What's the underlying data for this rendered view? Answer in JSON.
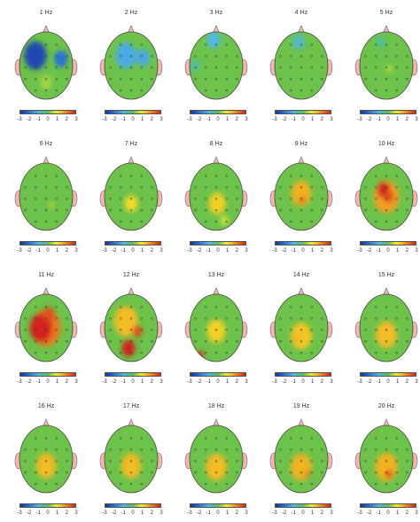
{
  "chart_data": {
    "type": "heatmap",
    "subtype": "eeg-topographic-map",
    "colorbar_ticks": [
      "-3",
      "-2",
      "-1",
      "0",
      "1",
      "2",
      "3"
    ],
    "color_range": [
      -3,
      3
    ],
    "colorscale": [
      "#1a2f9c",
      "#2a6fd6",
      "#4fb7e8",
      "#56c05c",
      "#f2ee2c",
      "#f28a1e",
      "#d2241c"
    ],
    "baseline_color": "#6cc24a",
    "electrode_grid": "5x5",
    "panels": [
      {
        "title": "1 Hz",
        "spots": [
          {
            "x": 0.3,
            "y": 0.35,
            "r": 0.42,
            "v": -2.6
          },
          {
            "x": 0.78,
            "y": 0.4,
            "r": 0.25,
            "v": -2.0
          },
          {
            "x": 0.5,
            "y": 0.75,
            "r": 0.22,
            "v": 0.5
          }
        ]
      },
      {
        "title": "2 Hz",
        "spots": [
          {
            "x": 0.4,
            "y": 0.35,
            "r": 0.38,
            "v": -1.2
          },
          {
            "x": 0.72,
            "y": 0.38,
            "r": 0.26,
            "v": -1.2
          }
        ]
      },
      {
        "title": "3 Hz",
        "spots": [
          {
            "x": 0.45,
            "y": 0.12,
            "r": 0.25,
            "v": -1.0
          },
          {
            "x": 0.1,
            "y": 0.5,
            "r": 0.18,
            "v": -0.5
          }
        ]
      },
      {
        "title": "4 Hz",
        "spots": [
          {
            "x": 0.45,
            "y": 0.15,
            "r": 0.22,
            "v": -0.8
          }
        ]
      },
      {
        "title": "5 Hz",
        "spots": [
          {
            "x": 0.4,
            "y": 0.15,
            "r": 0.18,
            "v": -0.4
          },
          {
            "x": 0.55,
            "y": 0.55,
            "r": 0.1,
            "v": 0.8
          }
        ]
      },
      {
        "title": "6 Hz",
        "spots": [
          {
            "x": 0.6,
            "y": 0.62,
            "r": 0.08,
            "v": 1.2
          }
        ]
      },
      {
        "title": "7 Hz",
        "spots": [
          {
            "x": 0.5,
            "y": 0.6,
            "r": 0.25,
            "v": 1.2
          }
        ]
      },
      {
        "title": "8 Hz",
        "spots": [
          {
            "x": 0.52,
            "y": 0.6,
            "r": 0.32,
            "v": 1.3
          },
          {
            "x": 0.65,
            "y": 0.85,
            "r": 0.15,
            "v": 0.8
          }
        ]
      },
      {
        "title": "9 Hz",
        "spots": [
          {
            "x": 0.5,
            "y": 0.45,
            "r": 0.38,
            "v": 1.6
          },
          {
            "x": 0.52,
            "y": 0.55,
            "r": 0.1,
            "v": 2.8
          }
        ]
      },
      {
        "title": "10 Hz",
        "spots": [
          {
            "x": 0.5,
            "y": 0.5,
            "r": 0.48,
            "v": 1.8
          },
          {
            "x": 0.45,
            "y": 0.4,
            "r": 0.24,
            "v": 3.0
          },
          {
            "x": 0.55,
            "y": 0.5,
            "r": 0.18,
            "v": 2.6
          }
        ]
      },
      {
        "title": "11 Hz",
        "spots": [
          {
            "x": 0.5,
            "y": 0.5,
            "r": 0.55,
            "v": 2.2
          },
          {
            "x": 0.4,
            "y": 0.5,
            "r": 0.42,
            "v": 3.0
          },
          {
            "x": 0.55,
            "y": 0.3,
            "r": 0.22,
            "v": 2.6
          }
        ]
      },
      {
        "title": "12 Hz",
        "spots": [
          {
            "x": 0.4,
            "y": 0.4,
            "r": 0.45,
            "v": 1.5
          },
          {
            "x": 0.45,
            "y": 0.8,
            "r": 0.25,
            "v": 3.0
          },
          {
            "x": 0.62,
            "y": 0.55,
            "r": 0.18,
            "v": 2.6
          }
        ]
      },
      {
        "title": "13 Hz",
        "spots": [
          {
            "x": 0.5,
            "y": 0.55,
            "r": 0.35,
            "v": 1.3
          },
          {
            "x": 0.2,
            "y": 0.9,
            "r": 0.13,
            "v": 2.8
          }
        ]
      },
      {
        "title": "14 Hz",
        "spots": [
          {
            "x": 0.5,
            "y": 0.62,
            "r": 0.4,
            "v": 1.4
          },
          {
            "x": 0.4,
            "y": 0.65,
            "r": 0.15,
            "v": 1.6
          }
        ]
      },
      {
        "title": "15 Hz",
        "spots": [
          {
            "x": 0.5,
            "y": 0.6,
            "r": 0.4,
            "v": 1.5
          }
        ]
      },
      {
        "title": "16 Hz",
        "spots": [
          {
            "x": 0.5,
            "y": 0.6,
            "r": 0.38,
            "v": 1.5
          }
        ]
      },
      {
        "title": "17 Hz",
        "spots": [
          {
            "x": 0.5,
            "y": 0.6,
            "r": 0.38,
            "v": 1.5
          }
        ]
      },
      {
        "title": "18 Hz",
        "spots": [
          {
            "x": 0.5,
            "y": 0.62,
            "r": 0.4,
            "v": 1.5
          }
        ]
      },
      {
        "title": "19 Hz",
        "spots": [
          {
            "x": 0.5,
            "y": 0.62,
            "r": 0.4,
            "v": 1.6
          },
          {
            "x": 0.62,
            "y": 0.72,
            "r": 0.08,
            "v": 3.0
          }
        ]
      },
      {
        "title": "20 Hz",
        "spots": [
          {
            "x": 0.5,
            "y": 0.62,
            "r": 0.42,
            "v": 1.6
          },
          {
            "x": 0.55,
            "y": 0.72,
            "r": 0.12,
            "v": 3.0
          }
        ]
      }
    ]
  }
}
